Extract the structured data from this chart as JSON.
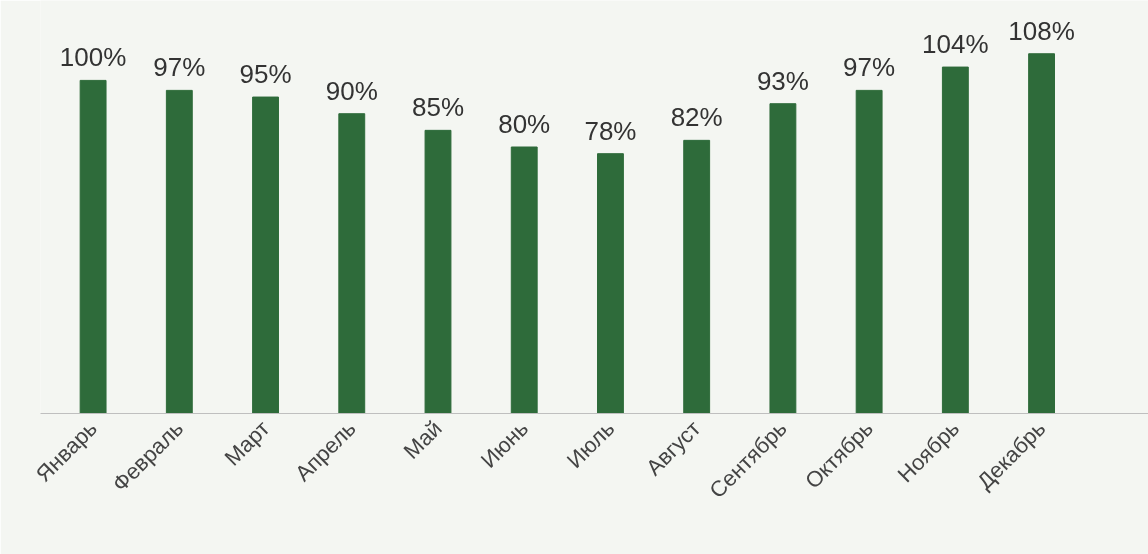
{
  "chart_data": {
    "type": "bar",
    "categories": [
      "Январь",
      "Февраль",
      "Март",
      "Апрель",
      "Май",
      "Июнь",
      "Июль",
      "Август",
      "Сентябрь",
      "Октябрь",
      "Ноябрь",
      "Декабрь"
    ],
    "values": [
      100,
      97,
      95,
      90,
      85,
      80,
      78,
      82,
      93,
      97,
      104,
      108
    ],
    "value_labels": [
      "100%",
      "97%",
      "95%",
      "90%",
      "85%",
      "80%",
      "78%",
      "82%",
      "93%",
      "97%",
      "104%",
      "108%"
    ],
    "color": "#2e6b3a",
    "grid": false
  }
}
